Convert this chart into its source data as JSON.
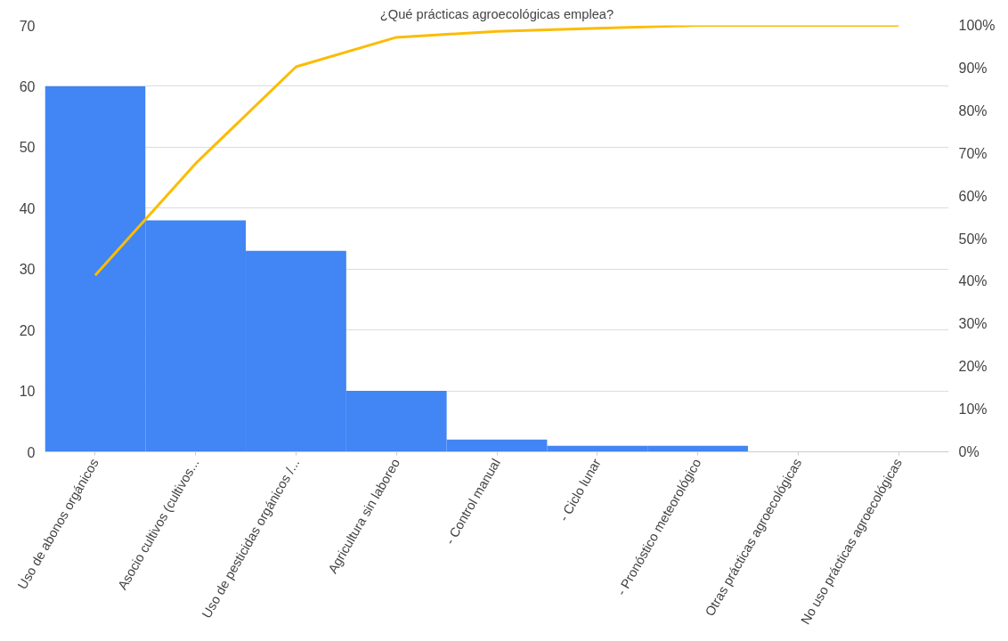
{
  "chart_data": {
    "type": "bar",
    "title": "¿Qué prácticas agroecológicas emplea?",
    "categories": [
      "Uso de abonos orgánicos",
      "Asocio cultivos (cultivos...",
      "Uso de pesticidas orgánicos /...",
      "Agricultura sin laboreo",
      "- Control manual",
      "- Ciclo lunar",
      "- Pronóstico meteorológico",
      "Otras prácticas agroecológicas",
      "No uso prácticas agroecológicas"
    ],
    "series": [
      {
        "color": "#4285f4",
        "values": [
          60,
          38,
          33,
          10,
          2,
          1,
          1,
          0,
          0
        ]
      },
      {
        "type": "line",
        "axis": "y2",
        "color": "#fbbc04",
        "values": [
          41.4,
          67.6,
          90.3,
          97.2,
          98.6,
          99.3,
          100,
          100,
          100
        ]
      }
    ],
    "ylim": [
      0,
      70
    ],
    "yticks": [
      0,
      10,
      20,
      30,
      40,
      50,
      60,
      70
    ],
    "y2lim": [
      0,
      100
    ],
    "y2ticks": [
      {
        "value": 0,
        "label": "0%"
      },
      {
        "value": 10,
        "label": "10%"
      },
      {
        "value": 20,
        "label": "20%"
      },
      {
        "value": 30,
        "label": "30%"
      },
      {
        "value": 40,
        "label": "40%"
      },
      {
        "value": 50,
        "label": "50%"
      },
      {
        "value": 60,
        "label": "60%"
      },
      {
        "value": 70,
        "label": "70%"
      },
      {
        "value": 80,
        "label": "80%"
      },
      {
        "value": 90,
        "label": "90%"
      },
      {
        "value": 100,
        "label": "100%"
      }
    ],
    "grid": "y",
    "marker": "none",
    "line_style": "solid"
  }
}
